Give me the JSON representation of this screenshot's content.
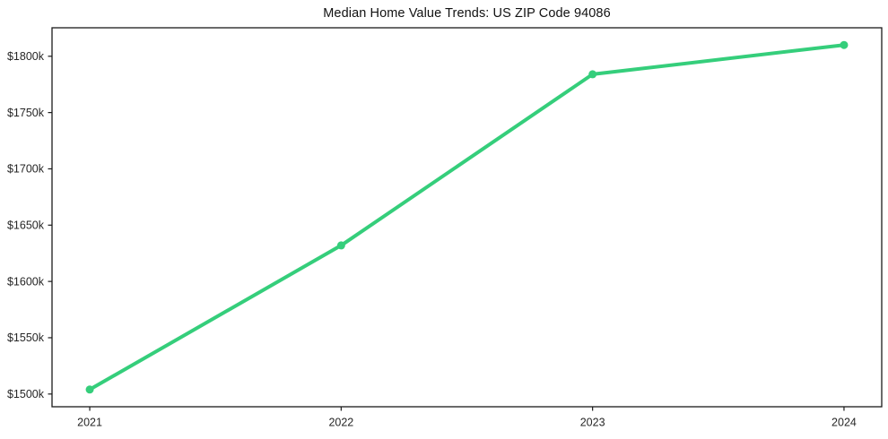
{
  "chart_data": {
    "type": "line",
    "title": "Median Home Value Trends: US ZIP Code 94086",
    "xlabel": "",
    "ylabel": "",
    "categories": [
      "2021",
      "2022",
      "2023",
      "2024"
    ],
    "x": [
      2021,
      2022,
      2023,
      2024
    ],
    "series": [
      {
        "name": "Median home value",
        "values": [
          1504,
          1632,
          1784,
          1810
        ],
        "unit": "$k"
      }
    ],
    "y_tick_values": [
      1500,
      1550,
      1600,
      1650,
      1700,
      1750,
      1800
    ],
    "y_tick_labels": [
      "$1500k",
      "$1550k",
      "$1600k",
      "$1650k",
      "$1700k",
      "$1750k",
      "$1800k"
    ],
    "xlim": [
      2020.85,
      2024.15
    ],
    "ylim": [
      1488.7,
      1825.3
    ],
    "grid": false,
    "legend_position": "none",
    "line_color": "#35ce7b",
    "marker": "circle",
    "axis_color": "#1a1a1a",
    "tick_label_color": "#262626",
    "background_color": "#ffffff"
  }
}
